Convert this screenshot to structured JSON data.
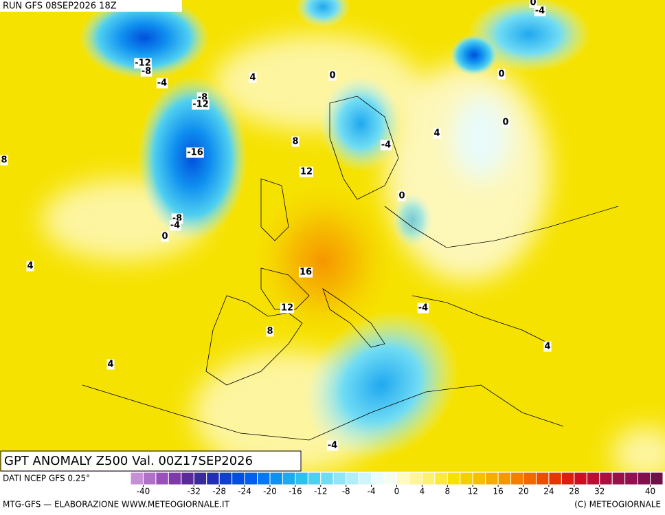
{
  "header": {
    "run": "RUN GFS 08SEP2026 18Z"
  },
  "title": "GPT ANOMALY Z500 Val. 00Z17SEP2026",
  "map": {
    "contour_labels": [
      "-12",
      "-8",
      "-4",
      "4",
      "0",
      "-8",
      "-12",
      "-16",
      "8",
      "8",
      "12",
      "-4",
      "4",
      "0",
      "0",
      "-4",
      "0",
      "0",
      "-8",
      "-4",
      "0",
      "4",
      "16",
      "12",
      "-4",
      "8",
      "4",
      "4",
      "-4"
    ]
  },
  "colorbar": {
    "source": "DATI NCEP GFS 0.25°",
    "range": [
      -42,
      42
    ],
    "colors": [
      "#c78fd6",
      "#b070c8",
      "#9a50b8",
      "#7d3aa8",
      "#5a2a98",
      "#3a2a9a",
      "#2030b0",
      "#1040c8",
      "#0050dc",
      "#0060e8",
      "#0878f0",
      "#1090f0",
      "#20a8f0",
      "#30c0f0",
      "#50d0f0",
      "#70dcf4",
      "#90e6f6",
      "#b0eef8",
      "#cef6fa",
      "#e8fcfc",
      "#f4fdf0",
      "#fefac0",
      "#fef59a",
      "#fdf070",
      "#fbe840",
      "#f8e000",
      "#f5d000",
      "#f6c000",
      "#f6ac00",
      "#f69600",
      "#f28000",
      "#ee6a00",
      "#e85000",
      "#e03800",
      "#d82010",
      "#c81020",
      "#b81030",
      "#a81040",
      "#981048",
      "#901050",
      "#801050",
      "#701048"
    ],
    "ticks": [
      -40,
      -32,
      -28,
      -24,
      -20,
      -16,
      -12,
      -8,
      -4,
      0,
      4,
      8,
      12,
      16,
      20,
      24,
      28,
      32,
      40
    ]
  },
  "footer": {
    "left": "MTG-GFS — ELABORAZIONE WWW.METEOGIORNALE.IT",
    "right": "(C) METEOGIORNALE"
  }
}
